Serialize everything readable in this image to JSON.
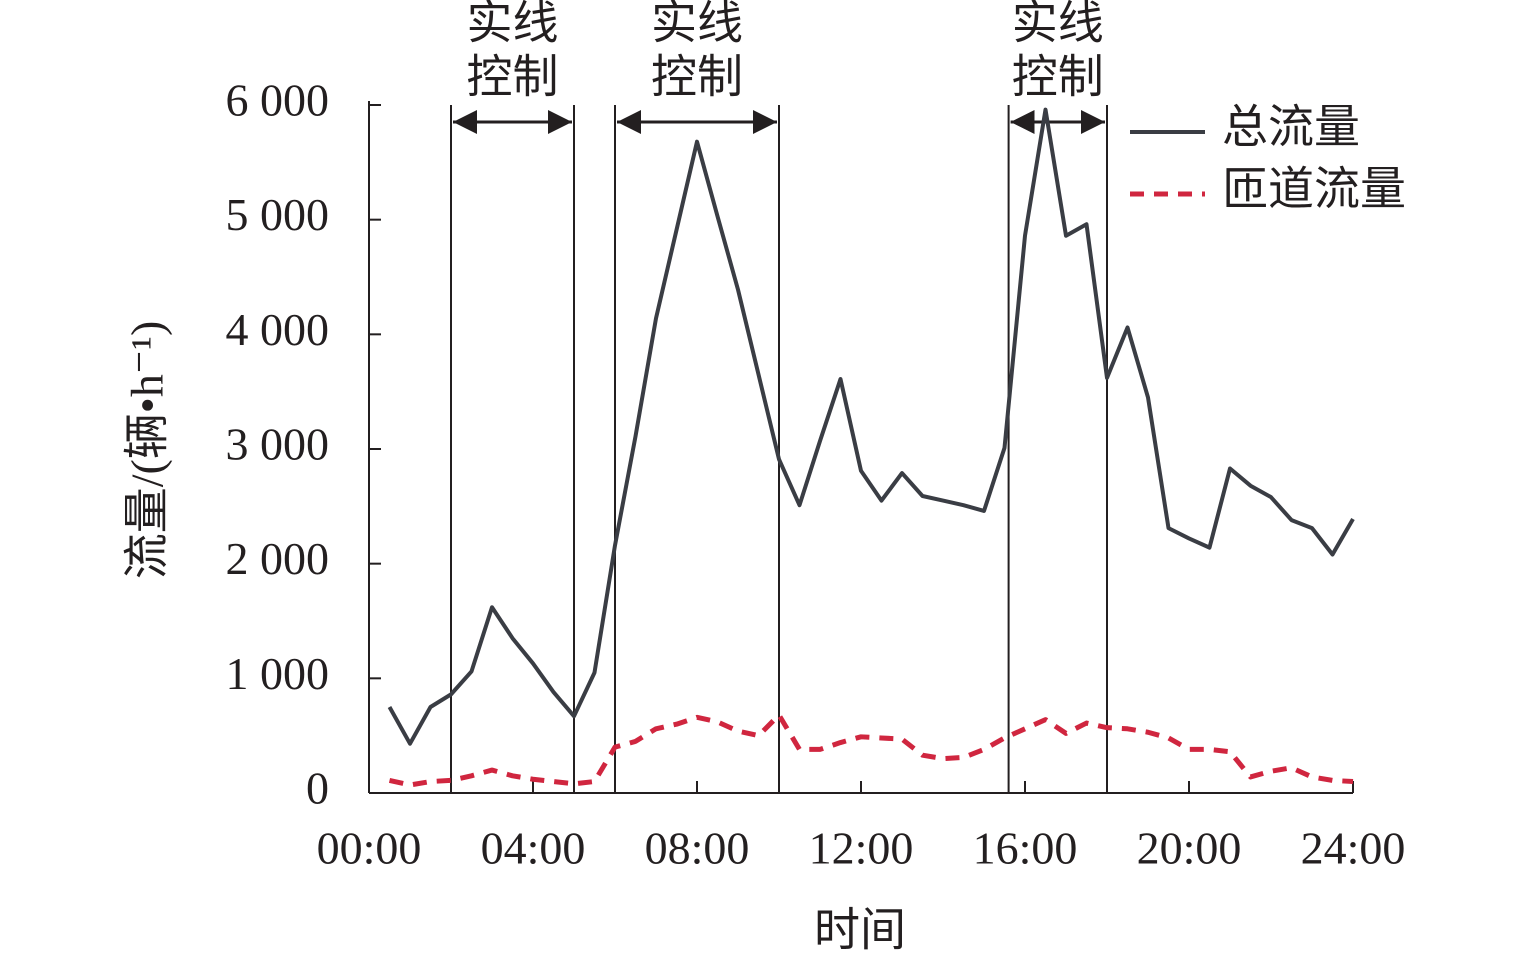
{
  "chart_data": {
    "type": "line",
    "xlabel": "时间",
    "ylabel": "流量/(辆•h⁻¹)",
    "x": [
      0.5,
      1,
      1.5,
      2,
      2.5,
      3,
      3.5,
      4,
      4.5,
      5,
      5.5,
      6,
      6.5,
      7,
      7.5,
      8,
      8.5,
      9,
      9.5,
      10,
      10.5,
      11,
      11.5,
      12,
      12.5,
      13,
      13.5,
      14,
      14.5,
      15,
      15.5,
      16,
      16.5,
      17,
      17.5,
      18,
      18.5,
      19,
      19.5,
      20,
      20.5,
      21,
      21.5,
      22,
      22.5,
      23,
      23.5,
      24
    ],
    "series": [
      {
        "name": "总流量",
        "color": "#3a3d44",
        "dash": false,
        "values": [
          750,
          430,
          750,
          860,
          1060,
          1620,
          1350,
          1130,
          880,
          670,
          1050,
          2160,
          3110,
          4140,
          4910,
          5680,
          5030,
          4390,
          3650,
          2910,
          2510,
          3070,
          3610,
          2810,
          2550,
          2790,
          2590,
          2550,
          2510,
          2460,
          3010,
          4860,
          5960,
          4860,
          4960,
          3620,
          4060,
          3450,
          2310,
          2220,
          2140,
          2830,
          2680,
          2580,
          2380,
          2310,
          2080,
          2390
        ]
      },
      {
        "name": "匝道流量",
        "color": "#d0263f",
        "dash": true,
        "values": [
          110,
          70,
          100,
          110,
          150,
          200,
          150,
          120,
          100,
          80,
          100,
          400,
          450,
          560,
          600,
          660,
          620,
          540,
          500,
          680,
          380,
          380,
          440,
          490,
          480,
          470,
          330,
          300,
          310,
          380,
          480,
          560,
          640,
          520,
          610,
          570,
          560,
          530,
          480,
          380,
          380,
          360,
          140,
          190,
          220,
          140,
          110,
          100
        ]
      }
    ],
    "xlim": [
      0,
      24
    ],
    "ylim": [
      0,
      6000
    ],
    "xticks": [
      {
        "value": 0,
        "label": "00:00"
      },
      {
        "value": 4,
        "label": "04:00"
      },
      {
        "value": 8,
        "label": "08:00"
      },
      {
        "value": 12,
        "label": "12:00"
      },
      {
        "value": 16,
        "label": "16:00"
      },
      {
        "value": 20,
        "label": "20:00"
      },
      {
        "value": 24,
        "label": "24:00"
      }
    ],
    "yticks": [
      0,
      {
        "value": 1000,
        "label": "1 000"
      },
      {
        "value": 2000,
        "label": "2 000"
      },
      {
        "value": 3000,
        "label": "3 000"
      },
      {
        "value": 4000,
        "label": "4 000"
      },
      {
        "value": 5000,
        "label": "5 000"
      },
      {
        "value": 6000,
        "label": "6 000"
      }
    ],
    "annotations": [
      {
        "lines": [
          "实线",
          "控制"
        ],
        "start": 2,
        "end": 5
      },
      {
        "lines": [
          "实线",
          "控制"
        ],
        "start": 6,
        "end": 10
      },
      {
        "lines": [
          "实线",
          "控制"
        ],
        "start": 15.6,
        "end": 18
      }
    ],
    "legend": "upper right"
  }
}
